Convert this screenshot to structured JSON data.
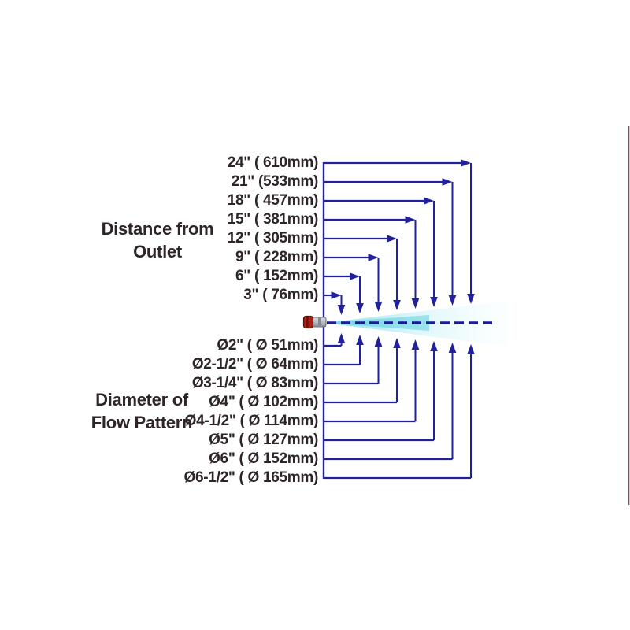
{
  "diagram": {
    "distance_section": {
      "title_line1": "Distance from",
      "title_line2": "Outlet",
      "labels": [
        "24\" ( 610mm)",
        "21\" (533mm)",
        "18\" ( 457mm)",
        "15\" ( 381mm)",
        "12\" ( 305mm)",
        "9\" ( 228mm)",
        "6\" ( 152mm)",
        "3\" ( 76mm)"
      ]
    },
    "diameter_section": {
      "title_line1": "Diameter of",
      "title_line2": "Flow Pattern",
      "labels": [
        "Ø2\" ( Ø 51mm)",
        "Ø2-1/2\" ( Ø 64mm)",
        "Ø3-1/4\" ( Ø 83mm)",
        "Ø4\" ( Ø 102mm)",
        "Ø4-1/2\" ( Ø 114mm)",
        "Ø5\" ( Ø 127mm)",
        "Ø6\" ( Ø 152mm)",
        "Ø6-1/2\" ( Ø 165mm)"
      ]
    },
    "colors": {
      "line": "#2121a0",
      "text": "#2e2528",
      "spray_start": "#74d8e9",
      "spray_mid": "#bdeef6",
      "spray_end": "#eafbfd",
      "nozzle_red": "#a72015",
      "nozzle_grey": "#b9bcc4",
      "edge_artifact": "#4a2a32"
    }
  }
}
